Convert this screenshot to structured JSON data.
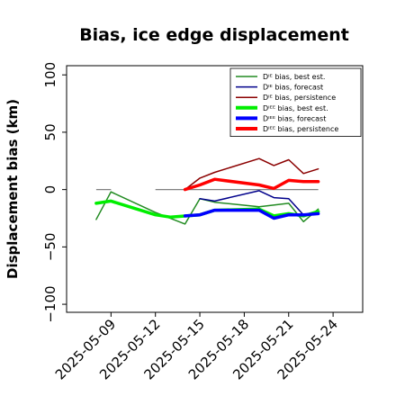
{
  "chart_data": {
    "type": "line",
    "title": "Bias, ice edge displacement",
    "xlabel": "",
    "ylabel": "Displacement bias (km)",
    "x_ticks": [
      "2025-05-09",
      "2025-05-12",
      "2025-05-15",
      "2025-05-18",
      "2025-05-21",
      "2025-05-24"
    ],
    "highlighted_x_tick": "2025-05-15",
    "highlight_color": "#228b22",
    "y_ticks": [
      -100,
      -50,
      0,
      50,
      100
    ],
    "y_tick_labels": [
      "−100",
      "−50",
      "0",
      "50",
      "100"
    ],
    "ylim": [
      -107,
      108
    ],
    "xlim": [
      "2025-05-06",
      "2025-05-26"
    ],
    "legend_position": "top-right",
    "series": [
      {
        "name": "Dᴵᴱ bias, best est.",
        "color": "#228b22",
        "style": "thin",
        "points": [
          [
            "2025-05-08",
            -26
          ],
          [
            "2025-05-09",
            -2
          ],
          [
            "2025-05-12",
            -20
          ],
          [
            "2025-05-14",
            -30
          ],
          [
            "2025-05-15",
            -8
          ],
          [
            "2025-05-16",
            -11
          ],
          [
            "2025-05-19",
            -15
          ],
          [
            "2025-05-21",
            -12
          ],
          [
            "2025-05-22",
            -28
          ],
          [
            "2025-05-23",
            -17
          ]
        ]
      },
      {
        "name": "Dᴵᴱ bias, forecast",
        "color": "#00008b",
        "style": "thin",
        "points": [
          [
            "2025-05-15",
            -8
          ],
          [
            "2025-05-16",
            -10
          ],
          [
            "2025-05-19",
            -1
          ],
          [
            "2025-05-20",
            -7
          ],
          [
            "2025-05-21",
            -8
          ],
          [
            "2025-05-22",
            -22
          ],
          [
            "2025-05-23",
            -20
          ]
        ]
      },
      {
        "name": "Dᴵᴱ bias, persistence",
        "color": "#8b0000",
        "style": "thin",
        "points": [
          [
            "2025-05-14",
            0
          ],
          [
            "2025-05-15",
            10
          ],
          [
            "2025-05-16",
            15
          ],
          [
            "2025-05-19",
            27
          ],
          [
            "2025-05-20",
            21
          ],
          [
            "2025-05-21",
            26
          ],
          [
            "2025-05-22",
            14
          ],
          [
            "2025-05-23",
            18
          ]
        ]
      },
      {
        "name": "Dᴵᴱᴱ bias, best est.",
        "color": "#00ee00",
        "style": "thick",
        "points": [
          [
            "2025-05-08",
            -12
          ],
          [
            "2025-05-09",
            -10
          ],
          [
            "2025-05-12",
            -22
          ],
          [
            "2025-05-13",
            -24
          ],
          [
            "2025-05-15",
            -22
          ],
          [
            "2025-05-16",
            -18
          ],
          [
            "2025-05-19",
            -17
          ],
          [
            "2025-05-20",
            -23
          ],
          [
            "2025-05-21",
            -21
          ],
          [
            "2025-05-22",
            -23
          ],
          [
            "2025-05-23",
            -19
          ]
        ]
      },
      {
        "name": "Dᴵᴱᴱ bias, forecast",
        "color": "#0000ff",
        "style": "thick",
        "points": [
          [
            "2025-05-14",
            -23
          ],
          [
            "2025-05-15",
            -22
          ],
          [
            "2025-05-16",
            -18
          ],
          [
            "2025-05-19",
            -18
          ],
          [
            "2025-05-20",
            -25
          ],
          [
            "2025-05-21",
            -22
          ],
          [
            "2025-05-22",
            -22
          ],
          [
            "2025-05-23",
            -21
          ]
        ]
      },
      {
        "name": "Dᴵᴱᴱ bias, persistence",
        "color": "#ff0000",
        "style": "thick",
        "points": [
          [
            "2025-05-14",
            0
          ],
          [
            "2025-05-15",
            4
          ],
          [
            "2025-05-16",
            9
          ],
          [
            "2025-05-19",
            4
          ],
          [
            "2025-05-20",
            1
          ],
          [
            "2025-05-21",
            8
          ],
          [
            "2025-05-22",
            7
          ],
          [
            "2025-05-23",
            7
          ]
        ]
      }
    ],
    "connectors": [
      {
        "color": "#228b22",
        "from": [
          "2025-05-09",
          -2
        ],
        "to": [
          "2025-05-12",
          -20
        ]
      },
      {
        "color": "#00ee00",
        "from": [
          "2025-05-09",
          -10
        ],
        "to": [
          "2025-05-12",
          -22
        ]
      },
      {
        "color": "#00008b",
        "from": [
          "2025-05-16",
          -10
        ],
        "to": [
          "2025-05-19",
          -1
        ]
      },
      {
        "color": "#8b0000",
        "from": [
          "2025-05-16",
          15
        ],
        "to": [
          "2025-05-19",
          27
        ]
      },
      {
        "color": "#ff0000",
        "from": [
          "2025-05-16",
          9
        ],
        "to": [
          "2025-05-19",
          4
        ]
      }
    ],
    "zero_segments": [
      [
        "2025-05-08",
        "2025-05-09"
      ],
      [
        "2025-05-12",
        "2025-05-23"
      ]
    ]
  }
}
